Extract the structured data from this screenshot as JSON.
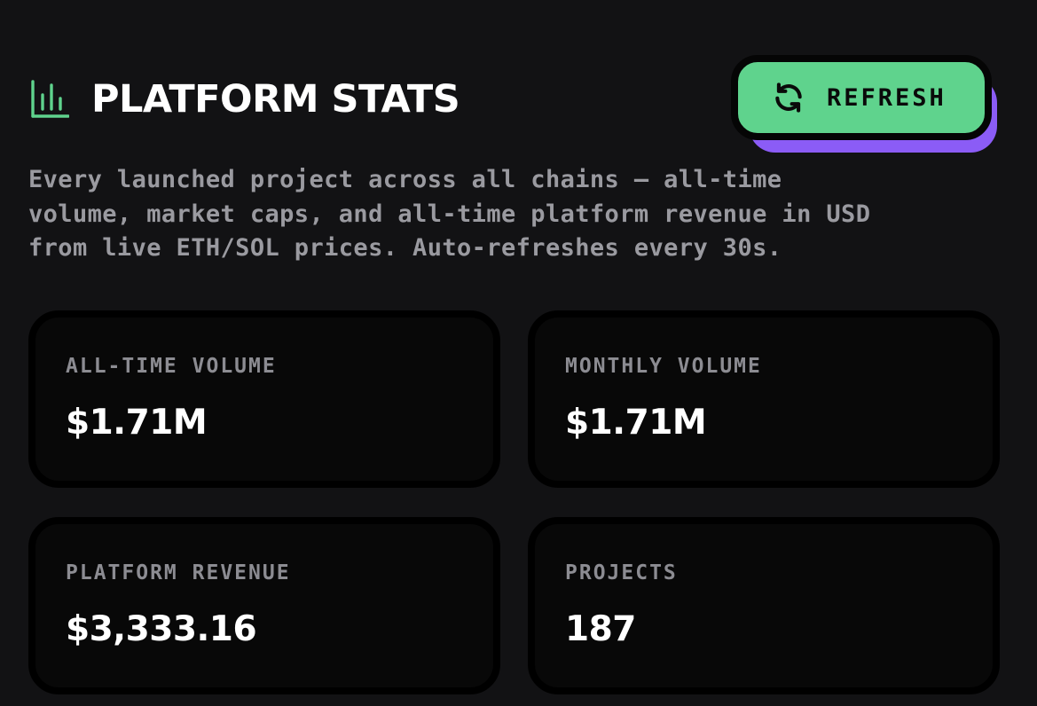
{
  "header": {
    "title": "PLATFORM STATS",
    "icon": "bar-chart-icon",
    "refresh_label": "REFRESH",
    "refresh_icon": "refresh-icon"
  },
  "description": "Every launched project across all chains — all-time\nvolume, market caps, and all-time platform revenue in USD\nfrom live ETH/SOL prices. Auto-refreshes every 30s.",
  "stats": [
    {
      "label": "ALL-TIME VOLUME",
      "value": "$1.71M"
    },
    {
      "label": "MONTHLY VOLUME",
      "value": "$1.71M"
    },
    {
      "label": "PLATFORM REVENUE",
      "value": "$3,333.16"
    },
    {
      "label": "PROJECTS",
      "value": "187"
    }
  ],
  "colors": {
    "background": "#121214",
    "card_background": "#080808",
    "accent_green": "#5fd38d",
    "accent_purple": "#8b5cf6",
    "muted_text": "#9a9aa0"
  }
}
